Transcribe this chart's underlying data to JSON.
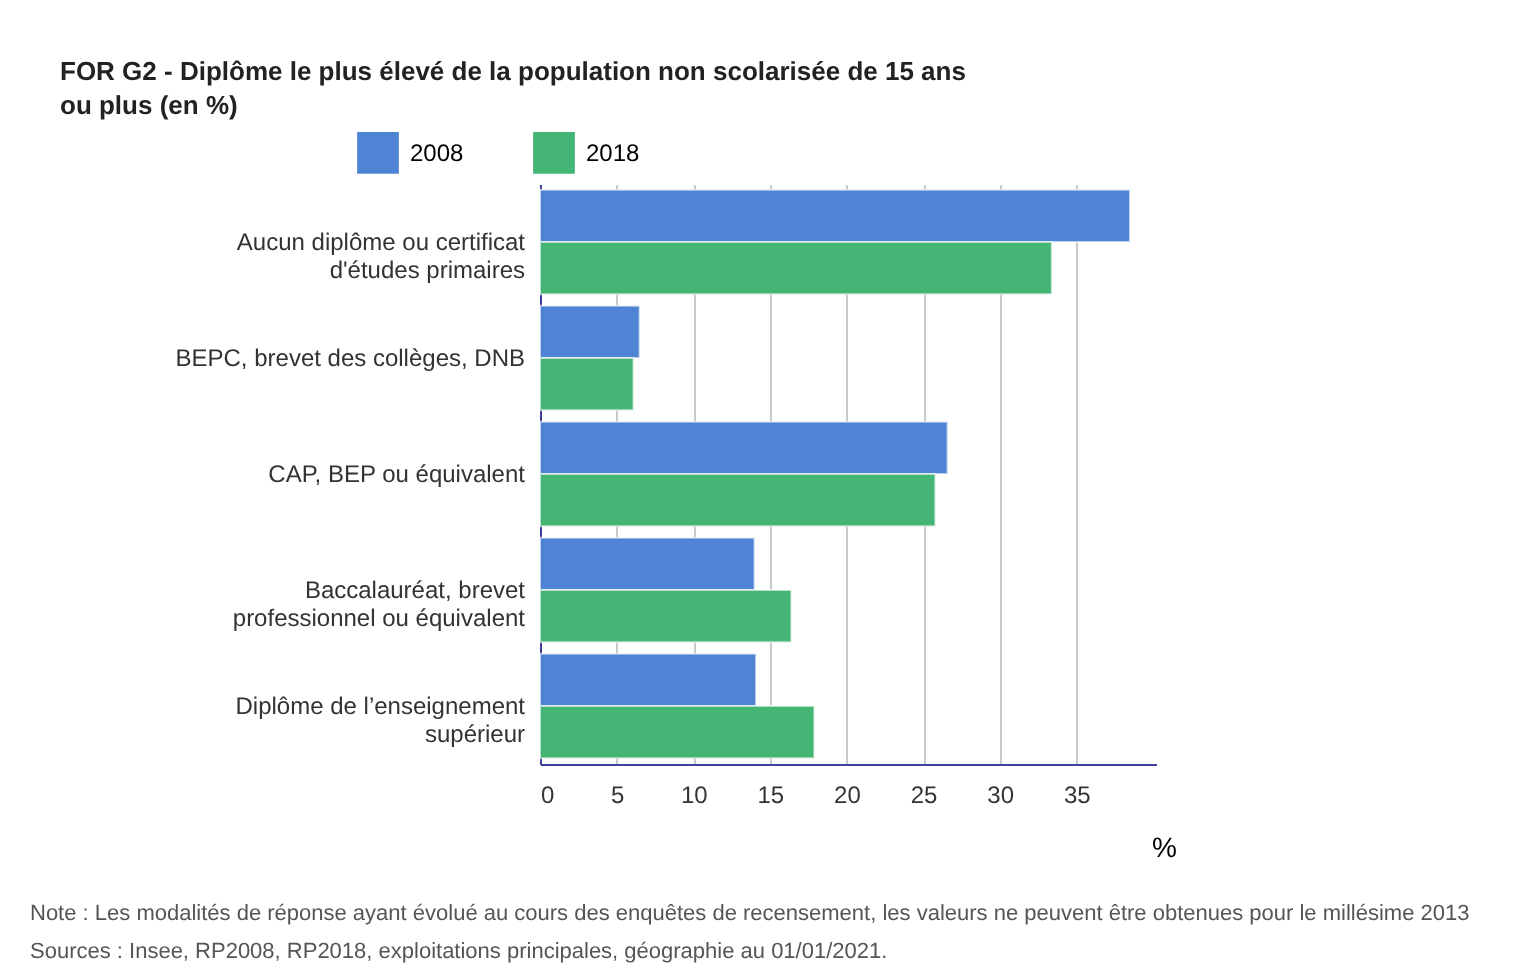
{
  "chart_data": {
    "type": "bar",
    "orientation": "horizontal",
    "title": "FOR G2 - Diplôme le plus élevé de la population non scolarisée de 15 ans ou plus (en %)",
    "categories": [
      "Aucun diplôme ou certificat\nd'études primaires",
      "BEPC, brevet des collèges, DNB",
      "CAP, BEP ou équivalent",
      "Baccalauréat, brevet\nprofessionnel ou équivalent",
      "Diplôme de l’enseignement\nsupérieur"
    ],
    "series": [
      {
        "name": "2008",
        "color": "#4f84d4",
        "values": [
          38.5,
          6.5,
          26.6,
          14.0,
          14.1
        ]
      },
      {
        "name": "2018",
        "color": "#45b575",
        "values": [
          33.4,
          6.1,
          25.8,
          16.4,
          17.9
        ]
      }
    ],
    "xlabel": "%",
    "xlim": [
      0,
      40.2
    ],
    "xticks": [
      0,
      5,
      10,
      15,
      20,
      25,
      30,
      35
    ],
    "grid": "x",
    "legend": "top",
    "annotations": [
      "Note : Les modalités de réponse ayant évolué au cours des enquêtes de recensement, les valeurs ne peuvent être obtenues pour le millésime 2013",
      "Sources : Insee, RP2008, RP2018, exploitations principales, géographie au 01/01/2021."
    ]
  }
}
